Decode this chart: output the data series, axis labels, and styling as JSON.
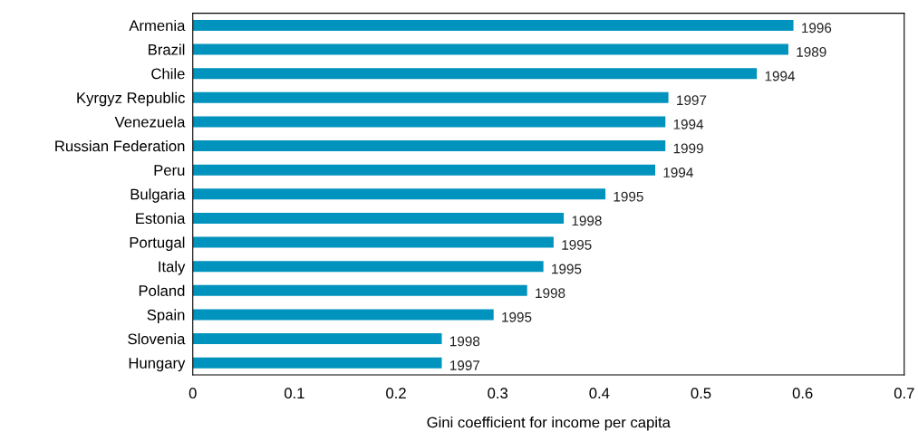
{
  "chart_data": {
    "type": "bar",
    "orientation": "horizontal",
    "xlabel": "Gini coefficient for income per capita",
    "categories": [
      "Armenia",
      "Brazil",
      "Chile",
      "Kyrgyz Republic",
      "Venezuela",
      "Russian Federation",
      "Peru",
      "Bulgaria",
      "Estonia",
      "Portugal",
      "Italy",
      "Poland",
      "Spain",
      "Slovenia",
      "Hungary"
    ],
    "values": [
      0.591,
      0.586,
      0.555,
      0.468,
      0.465,
      0.465,
      0.455,
      0.406,
      0.365,
      0.355,
      0.345,
      0.329,
      0.296,
      0.245,
      0.245
    ],
    "annotations": [
      {
        "text": "1996",
        "x": 0.591,
        "y": "Armenia"
      },
      {
        "text": "1989",
        "x": 0.586,
        "y": "Brazil"
      },
      {
        "text": "1994",
        "x": 0.555,
        "y": "Chile"
      },
      {
        "text": "1997",
        "x": 0.468,
        "y": "Kyrgyz Republic"
      },
      {
        "text": "1994",
        "x": 0.465,
        "y": "Venezuela"
      },
      {
        "text": "1999",
        "x": 0.465,
        "y": "Russian Federation"
      },
      {
        "text": "1994",
        "x": 0.455,
        "y": "Peru"
      },
      {
        "text": "1995",
        "x": 0.406,
        "y": "Bulgaria"
      },
      {
        "text": "1998",
        "x": 0.365,
        "y": "Estonia"
      },
      {
        "text": "1995",
        "x": 0.355,
        "y": "Portugal"
      },
      {
        "text": "1995",
        "x": 0.345,
        "y": "Italy"
      },
      {
        "text": "1998",
        "x": 0.329,
        "y": "Poland"
      },
      {
        "text": "1995",
        "x": 0.296,
        "y": "Spain"
      },
      {
        "text": "1998",
        "x": 0.245,
        "y": "Slovenia"
      },
      {
        "text": "1997",
        "x": 0.245,
        "y": "Hungary"
      }
    ],
    "color": "#0093bd",
    "xlim": [
      0,
      0.7
    ],
    "xticks": [
      0,
      0.1,
      0.2,
      0.3,
      0.4,
      0.5,
      0.6,
      0.7
    ],
    "grid": false,
    "legend": false
  }
}
